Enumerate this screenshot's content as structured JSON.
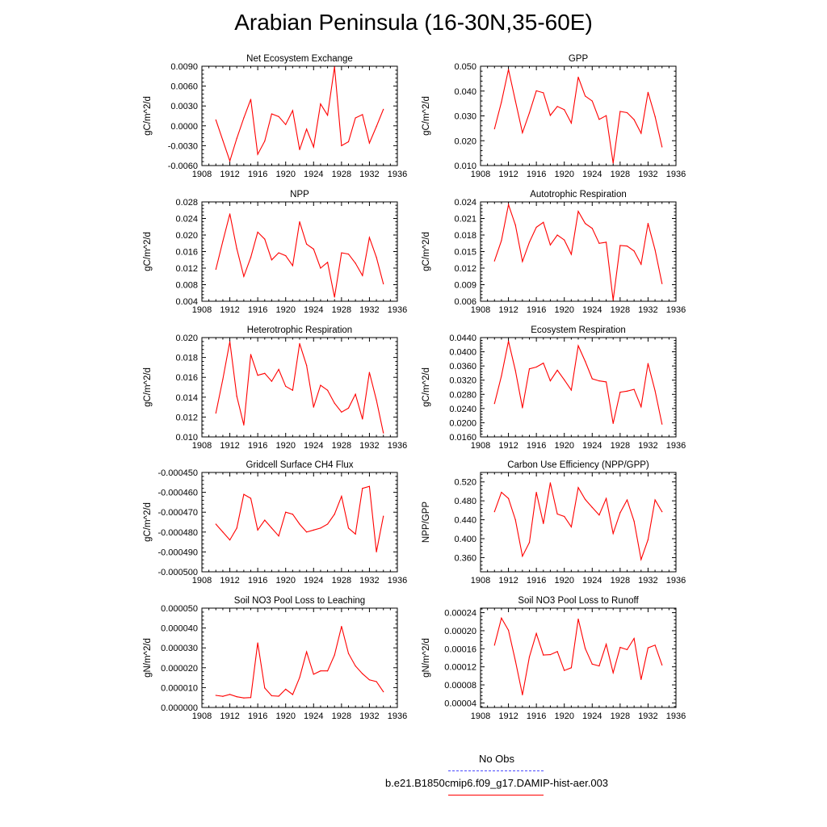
{
  "title": "Arabian Peninsula (16-30N,35-60E)",
  "legend": [
    {
      "label": "No Obs",
      "color": "#4a4aff",
      "dash": true
    },
    {
      "label": "b.e21.B1850cmip6.f09_g17.DAMIP-hist-aer.003",
      "color": "#ff0000",
      "dash": false
    }
  ],
  "chart_data": [
    {
      "type": "line",
      "title": "Net Ecosystem Exchange",
      "ylabel": "gC/m^2/d",
      "xlim": [
        1908,
        1936
      ],
      "xticks": [
        1908,
        1912,
        1916,
        1920,
        1924,
        1928,
        1932,
        1936
      ],
      "ylim": [
        -0.006,
        0.009
      ],
      "yticks": [
        "-0.0060",
        "-0.0030",
        "0.0000",
        "0.0030",
        "0.0060",
        "0.0090"
      ],
      "ytick_values": [
        -0.006,
        -0.003,
        0.0,
        0.003,
        0.006,
        0.009
      ],
      "x": [
        1910,
        1911,
        1912,
        1913,
        1914,
        1915,
        1916,
        1917,
        1918,
        1919,
        1920,
        1921,
        1922,
        1923,
        1924,
        1925,
        1926,
        1927,
        1928,
        1929,
        1930,
        1931,
        1932,
        1933,
        1934
      ],
      "series": [
        {
          "name": "b.e21.B1850cmip6.f09_g17.DAMIP-hist-aer.003",
          "color": "#ff0000",
          "values": [
            0.0009,
            -0.0022,
            -0.0053,
            -0.0019,
            0.0012,
            0.004,
            -0.0043,
            -0.0023,
            0.0018,
            0.0014,
            0.0002,
            0.0023,
            -0.0036,
            -0.0005,
            -0.0032,
            0.0033,
            0.0016,
            0.0089,
            -0.003,
            -0.0024,
            0.0012,
            0.0017,
            -0.0026,
            -0.0001,
            0.0025
          ]
        }
      ]
    },
    {
      "type": "line",
      "title": "GPP",
      "ylabel": "gC/m^2/d",
      "xlim": [
        1908,
        1936
      ],
      "xticks": [
        1908,
        1912,
        1916,
        1920,
        1924,
        1928,
        1932,
        1936
      ],
      "ylim": [
        0.01,
        0.05
      ],
      "yticks": [
        "0.010",
        "0.020",
        "0.030",
        "0.040",
        "0.050"
      ],
      "ytick_values": [
        0.01,
        0.02,
        0.03,
        0.04,
        0.05
      ],
      "x": [
        1910,
        1911,
        1912,
        1913,
        1914,
        1915,
        1916,
        1917,
        1918,
        1919,
        1920,
        1921,
        1922,
        1923,
        1924,
        1925,
        1926,
        1927,
        1928,
        1929,
        1930,
        1931,
        1932,
        1933,
        1934
      ],
      "series": [
        {
          "name": "b.e21.B1850cmip6.f09_g17.DAMIP-hist-aer.003",
          "color": "#ff0000",
          "values": [
            0.0248,
            0.0356,
            0.0487,
            0.036,
            0.0232,
            0.0312,
            0.0401,
            0.0393,
            0.0302,
            0.0338,
            0.0325,
            0.0271,
            0.0456,
            0.038,
            0.036,
            0.0286,
            0.0301,
            0.011,
            0.0318,
            0.0313,
            0.0285,
            0.023,
            0.0395,
            0.0298,
            0.0175
          ]
        }
      ]
    },
    {
      "type": "line",
      "title": "NPP",
      "ylabel": "gC/m^2/d",
      "xlim": [
        1908,
        1936
      ],
      "xticks": [
        1908,
        1912,
        1916,
        1920,
        1924,
        1928,
        1932,
        1936
      ],
      "ylim": [
        0.004,
        0.028
      ],
      "yticks": [
        "0.004",
        "0.008",
        "0.012",
        "0.016",
        "0.020",
        "0.024",
        "0.028"
      ],
      "ytick_values": [
        0.004,
        0.008,
        0.012,
        0.016,
        0.02,
        0.024,
        0.028
      ],
      "x": [
        1910,
        1911,
        1912,
        1913,
        1914,
        1915,
        1916,
        1917,
        1918,
        1919,
        1920,
        1921,
        1922,
        1923,
        1924,
        1925,
        1926,
        1927,
        1928,
        1929,
        1930,
        1931,
        1932,
        1933,
        1934
      ],
      "series": [
        {
          "name": "b.e21.B1850cmip6.f09_g17.DAMIP-hist-aer.003",
          "color": "#ff0000",
          "values": [
            0.0117,
            0.0185,
            0.0251,
            0.0167,
            0.01,
            0.0146,
            0.0207,
            0.019,
            0.014,
            0.0157,
            0.015,
            0.0126,
            0.0232,
            0.0178,
            0.0166,
            0.012,
            0.0134,
            0.005,
            0.0157,
            0.0154,
            0.0132,
            0.0102,
            0.0194,
            0.0146,
            0.0082
          ]
        }
      ]
    },
    {
      "type": "line",
      "title": "Autotrophic Respiration",
      "ylabel": "gC/m^2/d",
      "xlim": [
        1908,
        1936
      ],
      "xticks": [
        1908,
        1912,
        1916,
        1920,
        1924,
        1928,
        1932,
        1936
      ],
      "ylim": [
        0.006,
        0.024
      ],
      "yticks": [
        "0.006",
        "0.009",
        "0.012",
        "0.015",
        "0.018",
        "0.021",
        "0.024"
      ],
      "ytick_values": [
        0.006,
        0.009,
        0.012,
        0.015,
        0.018,
        0.021,
        0.024
      ],
      "x": [
        1910,
        1911,
        1912,
        1913,
        1914,
        1915,
        1916,
        1917,
        1918,
        1919,
        1920,
        1921,
        1922,
        1923,
        1924,
        1925,
        1926,
        1927,
        1928,
        1929,
        1930,
        1931,
        1932,
        1933,
        1934
      ],
      "series": [
        {
          "name": "b.e21.B1850cmip6.f09_g17.DAMIP-hist-aer.003",
          "color": "#ff0000",
          "values": [
            0.0133,
            0.017,
            0.0235,
            0.0198,
            0.0132,
            0.0167,
            0.0194,
            0.0203,
            0.0162,
            0.018,
            0.0171,
            0.0145,
            0.0223,
            0.0201,
            0.0192,
            0.0165,
            0.0167,
            0.0062,
            0.0161,
            0.016,
            0.0151,
            0.0127,
            0.0201,
            0.0153,
            0.0092
          ]
        }
      ]
    },
    {
      "type": "line",
      "title": "Heterotrophic Respiration",
      "ylabel": "gC/m^2/d",
      "xlim": [
        1908,
        1936
      ],
      "xticks": [
        1908,
        1912,
        1916,
        1920,
        1924,
        1928,
        1932,
        1936
      ],
      "ylim": [
        0.01,
        0.02
      ],
      "yticks": [
        "0.010",
        "0.012",
        "0.014",
        "0.016",
        "0.018",
        "0.020"
      ],
      "ytick_values": [
        0.01,
        0.012,
        0.014,
        0.016,
        0.018,
        0.02
      ],
      "x": [
        1910,
        1911,
        1912,
        1913,
        1914,
        1915,
        1916,
        1917,
        1918,
        1919,
        1920,
        1921,
        1922,
        1923,
        1924,
        1925,
        1926,
        1927,
        1928,
        1929,
        1930,
        1931,
        1932,
        1933,
        1934
      ],
      "series": [
        {
          "name": "b.e21.B1850cmip6.f09_g17.DAMIP-hist-aer.003",
          "color": "#ff0000",
          "values": [
            0.0124,
            0.0158,
            0.0196,
            0.0141,
            0.0112,
            0.0183,
            0.0162,
            0.0164,
            0.0156,
            0.0168,
            0.0151,
            0.0147,
            0.0194,
            0.0172,
            0.013,
            0.0152,
            0.0147,
            0.0134,
            0.0125,
            0.0129,
            0.0143,
            0.0118,
            0.0165,
            0.0137,
            0.0104
          ]
        }
      ]
    },
    {
      "type": "line",
      "title": "Ecosystem Respiration",
      "ylabel": "gC/m^2/d",
      "xlim": [
        1908,
        1936
      ],
      "xticks": [
        1908,
        1912,
        1916,
        1920,
        1924,
        1928,
        1932,
        1936
      ],
      "ylim": [
        0.016,
        0.044
      ],
      "yticks": [
        "0.0160",
        "0.0200",
        "0.0240",
        "0.0280",
        "0.0320",
        "0.0360",
        "0.0400",
        "0.0440"
      ],
      "ytick_values": [
        0.016,
        0.02,
        0.024,
        0.028,
        0.032,
        0.036,
        0.04,
        0.044
      ],
      "x": [
        1910,
        1911,
        1912,
        1913,
        1914,
        1915,
        1916,
        1917,
        1918,
        1919,
        1920,
        1921,
        1922,
        1923,
        1924,
        1925,
        1926,
        1927,
        1928,
        1929,
        1930,
        1931,
        1932,
        1933,
        1934
      ],
      "series": [
        {
          "name": "b.e21.B1850cmip6.f09_g17.DAMIP-hist-aer.003",
          "color": "#ff0000",
          "values": [
            0.0254,
            0.0332,
            0.043,
            0.0347,
            0.0242,
            0.0352,
            0.0357,
            0.0368,
            0.0318,
            0.0348,
            0.0321,
            0.0292,
            0.0417,
            0.0373,
            0.0324,
            0.0318,
            0.0315,
            0.0198,
            0.0286,
            0.0289,
            0.0294,
            0.0245,
            0.0367,
            0.029,
            0.0196
          ]
        }
      ]
    },
    {
      "type": "line",
      "title": "Gridcell Surface CH4 Flux",
      "ylabel": "gC/m^2/d",
      "xlim": [
        1908,
        1936
      ],
      "xticks": [
        1908,
        1912,
        1916,
        1920,
        1924,
        1928,
        1932,
        1936
      ],
      "ylim": [
        -0.0005,
        -0.00045
      ],
      "yticks": [
        "-0.000500",
        "-0.000490",
        "-0.000480",
        "-0.000470",
        "-0.000460",
        "-0.000450"
      ],
      "ytick_values": [
        -0.0005,
        -0.00049,
        -0.00048,
        -0.00047,
        -0.00046,
        -0.00045
      ],
      "x": [
        1910,
        1911,
        1912,
        1913,
        1914,
        1915,
        1916,
        1917,
        1918,
        1919,
        1920,
        1921,
        1922,
        1923,
        1924,
        1925,
        1926,
        1927,
        1928,
        1929,
        1930,
        1931,
        1932,
        1933,
        1934
      ],
      "series": [
        {
          "name": "b.e21.B1850cmip6.f09_g17.DAMIP-hist-aer.003",
          "color": "#ff0000",
          "values": [
            -0.000476,
            -0.00048,
            -0.000484,
            -0.000478,
            -0.000461,
            -0.000463,
            -0.000479,
            -0.000474,
            -0.000478,
            -0.000482,
            -0.00047,
            -0.000471,
            -0.000476,
            -0.00048,
            -0.000479,
            -0.000478,
            -0.000476,
            -0.000471,
            -0.000462,
            -0.000478,
            -0.000481,
            -0.000458,
            -0.000457,
            -0.00049,
            -0.000472
          ]
        }
      ]
    },
    {
      "type": "line",
      "title": "Carbon Use Efficiency (NPP/GPP)",
      "ylabel": "NPP/GPP",
      "xlim": [
        1908,
        1936
      ],
      "xticks": [
        1908,
        1912,
        1916,
        1920,
        1924,
        1928,
        1932,
        1936
      ],
      "ylim": [
        0.33,
        0.54
      ],
      "yticks": [
        "0.360",
        "0.400",
        "0.440",
        "0.480",
        "0.520"
      ],
      "ytick_values": [
        0.36,
        0.4,
        0.44,
        0.48,
        0.52
      ],
      "x": [
        1910,
        1911,
        1912,
        1913,
        1914,
        1915,
        1916,
        1917,
        1918,
        1919,
        1920,
        1921,
        1922,
        1923,
        1924,
        1925,
        1926,
        1927,
        1928,
        1929,
        1930,
        1931,
        1932,
        1933,
        1934
      ],
      "series": [
        {
          "name": "b.e21.B1850cmip6.f09_g17.DAMIP-hist-aer.003",
          "color": "#ff0000",
          "values": [
            0.457,
            0.498,
            0.485,
            0.44,
            0.363,
            0.392,
            0.498,
            0.432,
            0.518,
            0.452,
            0.447,
            0.425,
            0.508,
            0.483,
            0.466,
            0.45,
            0.485,
            0.411,
            0.455,
            0.482,
            0.437,
            0.356,
            0.398,
            0.482,
            0.457
          ]
        }
      ]
    },
    {
      "type": "line",
      "title": "Soil NO3 Pool Loss to Leaching",
      "ylabel": "gN/m^2/d",
      "xlim": [
        1908,
        1936
      ],
      "xticks": [
        1908,
        1912,
        1916,
        1920,
        1924,
        1928,
        1932,
        1936
      ],
      "ylim": [
        0.0,
        5e-05
      ],
      "yticks": [
        "0.000000",
        "0.000010",
        "0.000020",
        "0.000030",
        "0.000040",
        "0.000050"
      ],
      "ytick_values": [
        0.0,
        1e-05,
        2e-05,
        3e-05,
        4e-05,
        5e-05
      ],
      "x": [
        1910,
        1911,
        1912,
        1913,
        1914,
        1915,
        1916,
        1917,
        1918,
        1919,
        1920,
        1921,
        1922,
        1923,
        1924,
        1925,
        1926,
        1927,
        1928,
        1929,
        1930,
        1931,
        1932,
        1933,
        1934
      ],
      "series": [
        {
          "name": "b.e21.B1850cmip6.f09_g17.DAMIP-hist-aer.003",
          "color": "#ff0000",
          "values": [
            6.1e-06,
            5.6e-06,
            6.6e-06,
            5.4e-06,
            4.8e-06,
            5e-06,
            3.25e-05,
            9.8e-06,
            5.9e-06,
            5.7e-06,
            9.2e-06,
            6.5e-06,
            1.51e-05,
            2.8e-05,
            1.67e-05,
            1.84e-05,
            1.84e-05,
            2.64e-05,
            4.08e-05,
            2.72e-05,
            2.09e-05,
            1.7e-05,
            1.39e-05,
            1.3e-05,
            7.9e-06
          ]
        }
      ]
    },
    {
      "type": "line",
      "title": "Soil NO3 Pool Loss to Runoff",
      "ylabel": "gN/m^2/d",
      "xlim": [
        1908,
        1936
      ],
      "xticks": [
        1908,
        1912,
        1916,
        1920,
        1924,
        1928,
        1932,
        1936
      ],
      "ylim": [
        3e-05,
        0.00025
      ],
      "yticks": [
        "0.00004",
        "0.00008",
        "0.00012",
        "0.00016",
        "0.00020",
        "0.00024"
      ],
      "ytick_values": [
        4e-05,
        8e-05,
        0.00012,
        0.00016,
        0.0002,
        0.00024
      ],
      "x": [
        1910,
        1911,
        1912,
        1913,
        1914,
        1915,
        1916,
        1917,
        1918,
        1919,
        1920,
        1921,
        1922,
        1923,
        1924,
        1925,
        1926,
        1927,
        1928,
        1929,
        1930,
        1931,
        1932,
        1933,
        1934
      ],
      "series": [
        {
          "name": "b.e21.B1850cmip6.f09_g17.DAMIP-hist-aer.003",
          "color": "#ff0000",
          "values": [
            0.000168,
            0.000228,
            0.000201,
            0.000133,
            5.8e-05,
            0.000142,
            0.000194,
            0.000146,
            0.000147,
            0.000154,
            0.000112,
            0.000118,
            0.000226,
            0.000161,
            0.000126,
            0.000122,
            0.00017,
            0.000107,
            0.000163,
            0.000158,
            0.000183,
            9.2e-05,
            0.000162,
            0.000168,
            0.000124
          ]
        }
      ]
    }
  ]
}
